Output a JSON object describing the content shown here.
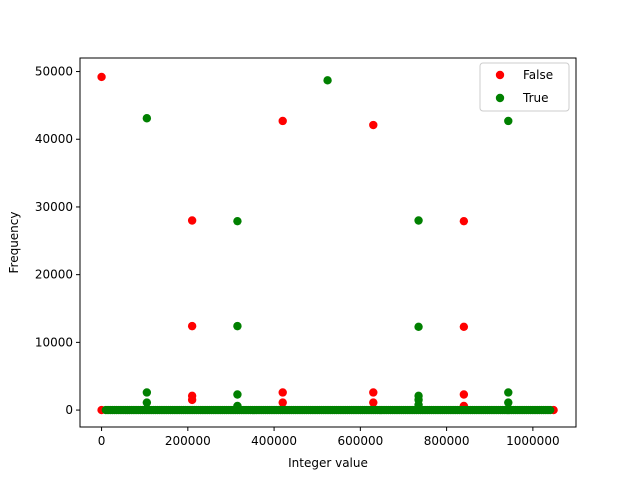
{
  "chart_data": {
    "type": "scatter",
    "title": "",
    "xlabel": "Integer value",
    "ylabel": "Frequency",
    "xlim": [
      -50000,
      1100000
    ],
    "ylim": [
      -2500,
      52000
    ],
    "xticks": [
      0,
      200000,
      400000,
      600000,
      800000,
      1000000
    ],
    "xtick_labels": [
      "0",
      "200000",
      "400000",
      "600000",
      "800000",
      "1000000"
    ],
    "yticks": [
      0,
      10000,
      20000,
      30000,
      40000,
      50000
    ],
    "ytick_labels": [
      "0",
      "10000",
      "20000",
      "30000",
      "40000",
      "50000"
    ],
    "grid": false,
    "legend_position": "top-right",
    "series": [
      {
        "name": "False",
        "color": "#ff0000",
        "points": [
          [
            0,
            49200
          ],
          [
            210000,
            28000
          ],
          [
            210000,
            12400
          ],
          [
            210000,
            2100
          ],
          [
            210000,
            1500
          ],
          [
            420000,
            42700
          ],
          [
            420000,
            2600
          ],
          [
            420000,
            1100
          ],
          [
            630000,
            42100
          ],
          [
            630000,
            2600
          ],
          [
            630000,
            1100
          ],
          [
            840000,
            27900
          ],
          [
            840000,
            12300
          ],
          [
            840000,
            2300
          ],
          [
            840000,
            600
          ],
          [
            0,
            0
          ],
          [
            1048000,
            0
          ]
        ]
      },
      {
        "name": "True",
        "color": "#008000",
        "points": [
          [
            105000,
            43100
          ],
          [
            105000,
            2600
          ],
          [
            105000,
            1100
          ],
          [
            315000,
            27900
          ],
          [
            315000,
            12400
          ],
          [
            315000,
            2300
          ],
          [
            315000,
            600
          ],
          [
            524000,
            48700
          ],
          [
            735000,
            28000
          ],
          [
            735000,
            12300
          ],
          [
            735000,
            2100
          ],
          [
            735000,
            1500
          ],
          [
            735000,
            800
          ],
          [
            943000,
            42700
          ],
          [
            943000,
            2600
          ],
          [
            943000,
            1100
          ]
        ],
        "baseline": {
          "x_start": 10000,
          "x_end": 1043000,
          "y": 0,
          "step": 5000
        }
      }
    ]
  }
}
